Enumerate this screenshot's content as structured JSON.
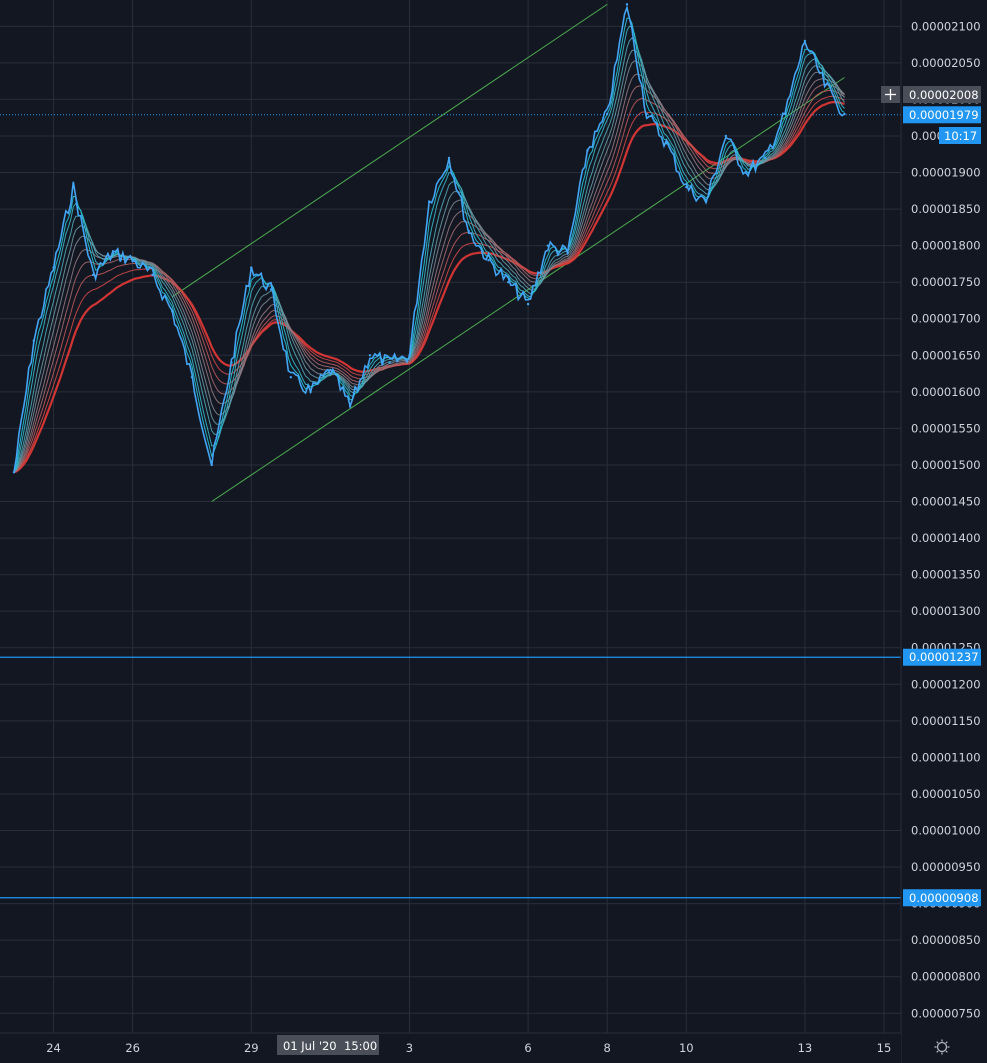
{
  "colors": {
    "background": "#131722",
    "grid": "#2a2e39",
    "axis_text": "#d1d4dc",
    "price_line": "#2196f3",
    "channel": "#4caf50",
    "ribbon_fast": "#26c6da",
    "ribbon_slow": "#e53935",
    "candle_blue": "#42a5f5",
    "crosshair_tag": "#4a4e59"
  },
  "crosshair": {
    "price_label": "0.00002008",
    "time_label": "01 Jul '20",
    "time_label_hour": "15:00",
    "plus_icon": "plus-icon"
  },
  "current_price": {
    "label": "0.00001979",
    "countdown": "10:17",
    "value": 1.979e-05
  },
  "settings_icon": "gear-icon",
  "chart_data": {
    "type": "line",
    "title": "",
    "xlabel": "",
    "ylabel": "",
    "x_ticks": [
      "24",
      "26",
      "29",
      "3",
      "6",
      "8",
      "10",
      "13",
      "15"
    ],
    "y_ticks": [
      "0.00002100",
      "0.00002050",
      "0.00002000",
      "0.00001950",
      "0.00001900",
      "0.00001850",
      "0.00001800",
      "0.00001750",
      "0.00001700",
      "0.00001650",
      "0.00001600",
      "0.00001550",
      "0.00001500",
      "0.00001450",
      "0.00001400",
      "0.00001350",
      "0.00001300",
      "0.00001250",
      "0.00001200",
      "0.00001150",
      "0.00001100",
      "0.00001050",
      "0.00001000",
      "0.00000950",
      "0.00000900",
      "0.00000850",
      "0.00000800",
      "0.00000750"
    ],
    "y_values": [
      2.1e-05,
      2.05e-05,
      2e-05,
      1.95e-05,
      1.9e-05,
      1.85e-05,
      1.8e-05,
      1.75e-05,
      1.7e-05,
      1.65e-05,
      1.6e-05,
      1.55e-05,
      1.5e-05,
      1.45e-05,
      1.4e-05,
      1.35e-05,
      1.3e-05,
      1.25e-05,
      1.2e-05,
      1.15e-05,
      1.1e-05,
      1.05e-05,
      1e-05,
      9.5e-06,
      9e-06,
      8.5e-06,
      8e-06,
      7.5e-06
    ],
    "ylim": [
      7.23e-06,
      2.136e-05
    ],
    "x_range": [
      "2020-06-23",
      "2020-07-15"
    ],
    "grid": true,
    "horizontal_levels": [
      {
        "label": "0.00001237",
        "value": 1.237e-05
      },
      {
        "label": "0.00000908",
        "value": 9.08e-06
      }
    ],
    "channel": {
      "upper": [
        {
          "x": "2020-06-27",
          "y": 1.73e-05
        },
        {
          "x": "2020-07-08",
          "y": 2.13e-05
        }
      ],
      "lower": [
        {
          "x": "2020-06-28",
          "y": 1.45e-05
        },
        {
          "x": "2020-07-14",
          "y": 2.03e-05
        }
      ]
    },
    "series": [
      {
        "values": [
          {
            "x": "2020-06-23",
            "y": 1.49e-05
          },
          {
            "x": "2020-06-23.5",
            "y": 1.67e-05
          },
          {
            "x": "2020-06-24",
            "y": 1.77e-05
          },
          {
            "x": "2020-06-24.5",
            "y": 1.88e-05
          },
          {
            "x": "2020-06-25",
            "y": 1.76e-05
          },
          {
            "x": "2020-06-25.5",
            "y": 1.79e-05
          },
          {
            "x": "2020-06-26",
            "y": 1.78e-05
          },
          {
            "x": "2020-06-26.5",
            "y": 1.76e-05
          },
          {
            "x": "2020-06-27",
            "y": 1.71e-05
          },
          {
            "x": "2020-06-27.5",
            "y": 1.62e-05
          },
          {
            "x": "2020-06-28",
            "y": 1.5e-05
          },
          {
            "x": "2020-06-28.5",
            "y": 1.64e-05
          },
          {
            "x": "2020-06-29",
            "y": 1.77e-05
          },
          {
            "x": "2020-06-29.5",
            "y": 1.74e-05
          },
          {
            "x": "2020-06-30",
            "y": 1.62e-05
          },
          {
            "x": "2020-06-30.5",
            "y": 1.6e-05
          },
          {
            "x": "2020-07-01",
            "y": 1.63e-05
          },
          {
            "x": "2020-07-01.5",
            "y": 1.58e-05
          },
          {
            "x": "2020-07-02",
            "y": 1.65e-05
          },
          {
            "x": "2020-07-02.5",
            "y": 1.64e-05
          },
          {
            "x": "2020-07-03",
            "y": 1.65e-05
          },
          {
            "x": "2020-07-03.5",
            "y": 1.86e-05
          },
          {
            "x": "2020-07-04",
            "y": 1.92e-05
          },
          {
            "x": "2020-07-04.5",
            "y": 1.82e-05
          },
          {
            "x": "2020-07-05",
            "y": 1.78e-05
          },
          {
            "x": "2020-07-05.5",
            "y": 1.75e-05
          },
          {
            "x": "2020-07-06",
            "y": 1.72e-05
          },
          {
            "x": "2020-07-06.5",
            "y": 1.8e-05
          },
          {
            "x": "2020-07-07",
            "y": 1.79e-05
          },
          {
            "x": "2020-07-07.5",
            "y": 1.93e-05
          },
          {
            "x": "2020-07-08",
            "y": 1.98e-05
          },
          {
            "x": "2020-07-08.5",
            "y": 2.13e-05
          },
          {
            "x": "2020-07-09",
            "y": 1.98e-05
          },
          {
            "x": "2020-07-09.5",
            "y": 1.94e-05
          },
          {
            "x": "2020-07-10",
            "y": 1.88e-05
          },
          {
            "x": "2020-07-10.5",
            "y": 1.86e-05
          },
          {
            "x": "2020-07-11",
            "y": 1.95e-05
          },
          {
            "x": "2020-07-11.5",
            "y": 1.9e-05
          },
          {
            "x": "2020-07-12",
            "y": 1.92e-05
          },
          {
            "x": "2020-07-12.5",
            "y": 1.98e-05
          },
          {
            "x": "2020-07-13",
            "y": 2.08e-05
          },
          {
            "x": "2020-07-13.5",
            "y": 2.02e-05
          },
          {
            "x": "2020-07-14",
            "y": 1.98e-05
          }
        ]
      }
    ]
  }
}
